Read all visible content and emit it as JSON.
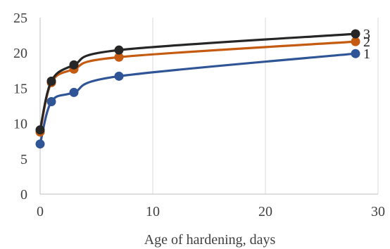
{
  "chart_data": {
    "type": "line",
    "title": "",
    "xlabel": "Age of hardening, days",
    "ylabel": "",
    "xlim": [
      0,
      30
    ],
    "ylim": [
      0,
      25
    ],
    "x_ticks": [
      0,
      10,
      20,
      30
    ],
    "y_ticks": [
      0,
      5,
      10,
      15,
      20,
      25
    ],
    "grid": "vertical",
    "legend": "none",
    "series": [
      {
        "name": "1",
        "color": "#2f5597",
        "x": [
          0,
          1,
          3,
          7,
          28
        ],
        "y": [
          7.1,
          13.1,
          14.4,
          16.7,
          19.9
        ]
      },
      {
        "name": "2",
        "color": "#c55a11",
        "x": [
          0,
          1,
          3,
          7,
          28
        ],
        "y": [
          8.8,
          15.8,
          17.7,
          19.4,
          21.6
        ]
      },
      {
        "name": "3",
        "color": "#262626",
        "x": [
          0,
          1,
          3,
          7,
          28
        ],
        "y": [
          9.1,
          16.0,
          18.3,
          20.4,
          22.7
        ]
      }
    ]
  }
}
